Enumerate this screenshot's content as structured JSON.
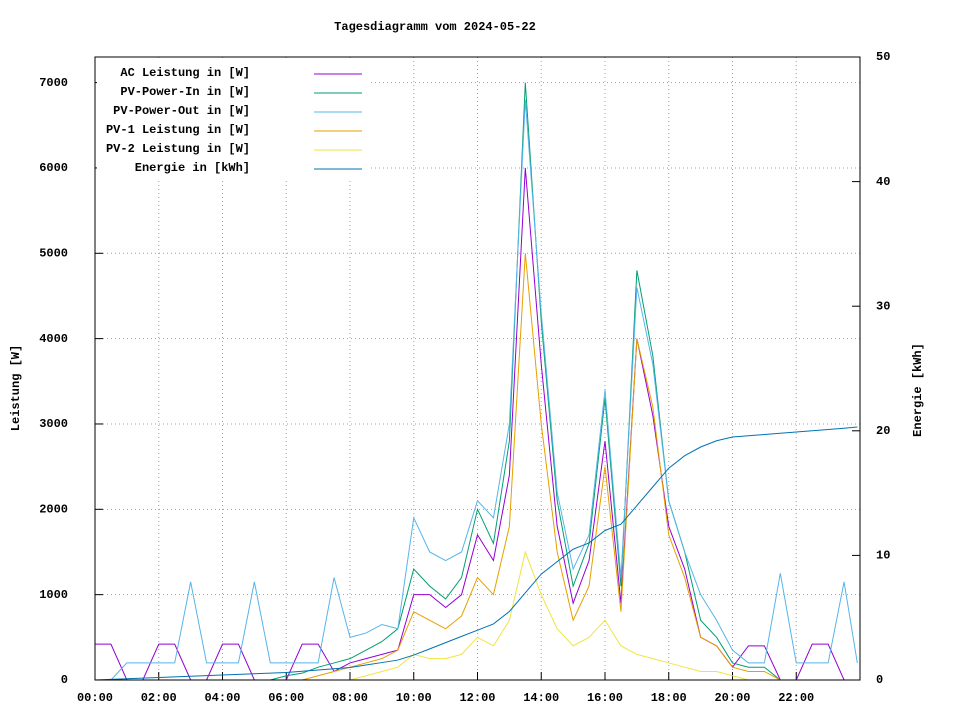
{
  "chart_data": {
    "type": "line",
    "title": "Tagesdiagramm vom 2024-05-22",
    "y_label": "Leistung [W]",
    "y2_label": "Energie [kWh]",
    "x": [
      "00:00",
      "00:30",
      "01:00",
      "01:30",
      "02:00",
      "02:30",
      "03:00",
      "03:30",
      "04:00",
      "04:30",
      "05:00",
      "05:30",
      "06:00",
      "06:30",
      "07:00",
      "07:30",
      "08:00",
      "08:30",
      "09:00",
      "09:30",
      "10:00",
      "10:30",
      "11:00",
      "11:30",
      "12:00",
      "12:30",
      "13:00",
      "13:30",
      "14:00",
      "14:30",
      "15:00",
      "15:30",
      "16:00",
      "16:30",
      "17:00",
      "17:30",
      "18:00",
      "18:30",
      "19:00",
      "19:30",
      "20:00",
      "20:30",
      "21:00",
      "21:30",
      "22:00",
      "22:30",
      "23:00",
      "23:30",
      "23:55"
    ],
    "xlim": [
      "00:00",
      "24:00"
    ],
    "xticks": [
      "00:00",
      "02:00",
      "04:00",
      "06:00",
      "08:00",
      "10:00",
      "12:00",
      "14:00",
      "16:00",
      "18:00",
      "20:00",
      "22:00"
    ],
    "ylim": [
      0,
      7300
    ],
    "yticks": [
      0,
      1000,
      2000,
      3000,
      4000,
      5000,
      6000,
      7000
    ],
    "y2lim": [
      0,
      50
    ],
    "y2ticks": [
      0,
      10,
      20,
      30,
      40,
      50
    ],
    "grid": true,
    "legend": "top-left",
    "series": [
      {
        "name": "AC Leistung in [W]",
        "color": "#9400d3",
        "values": [
          420,
          420,
          0,
          0,
          420,
          420,
          0,
          0,
          420,
          420,
          0,
          0,
          0,
          420,
          420,
          100,
          200,
          250,
          300,
          350,
          1000,
          1000,
          850,
          1000,
          1700,
          1400,
          2400,
          6000,
          3700,
          1800,
          900,
          1400,
          2800,
          900,
          4000,
          3100,
          1800,
          1300,
          500,
          400,
          150,
          400,
          400,
          0,
          0,
          420,
          420,
          0,
          0
        ]
      },
      {
        "name": "PV-Power-In in [W]",
        "color": "#009e73",
        "values": [
          0,
          0,
          0,
          0,
          0,
          0,
          0,
          0,
          0,
          0,
          0,
          0,
          50,
          80,
          150,
          200,
          250,
          350,
          450,
          600,
          1300,
          1100,
          950,
          1200,
          2000,
          1600,
          2800,
          7000,
          4200,
          2100,
          1100,
          1600,
          3300,
          1100,
          4800,
          3800,
          2100,
          1500,
          700,
          500,
          200,
          150,
          150,
          0,
          0,
          0,
          0,
          0,
          0
        ]
      },
      {
        "name": "PV-Power-Out in [W]",
        "color": "#56b4e9",
        "values": [
          0,
          0,
          200,
          200,
          200,
          200,
          1150,
          200,
          200,
          200,
          1150,
          200,
          200,
          200,
          200,
          1200,
          500,
          550,
          650,
          600,
          1900,
          1500,
          1400,
          1500,
          2100,
          1900,
          3000,
          6800,
          4300,
          2200,
          1300,
          1700,
          3400,
          1200,
          4600,
          3700,
          2100,
          1500,
          1000,
          700,
          350,
          200,
          200,
          1250,
          200,
          200,
          200,
          1150,
          200
        ]
      },
      {
        "name": "PV-1 Leistung in [W]",
        "color": "#e69f00",
        "values": [
          0,
          0,
          0,
          0,
          0,
          0,
          0,
          0,
          0,
          0,
          0,
          0,
          0,
          0,
          50,
          100,
          150,
          200,
          250,
          350,
          800,
          700,
          600,
          750,
          1200,
          1000,
          1800,
          5000,
          3000,
          1500,
          700,
          1100,
          2500,
          800,
          4000,
          3200,
          1700,
          1200,
          500,
          400,
          150,
          100,
          100,
          0,
          0,
          0,
          0,
          0,
          0
        ]
      },
      {
        "name": "PV-2 Leistung in [W]",
        "color": "#f0e442",
        "values": [
          0,
          0,
          0,
          0,
          0,
          0,
          0,
          0,
          0,
          0,
          0,
          0,
          0,
          0,
          0,
          0,
          0,
          50,
          100,
          150,
          300,
          250,
          250,
          300,
          500,
          400,
          700,
          1500,
          1000,
          600,
          400,
          500,
          700,
          400,
          300,
          250,
          200,
          150,
          100,
          100,
          50,
          0,
          0,
          0,
          0,
          0,
          0,
          0,
          0
        ]
      },
      {
        "name": "Energie in [kWh]",
        "color": "#0072b2",
        "axis": "y2",
        "values": [
          0,
          0.05,
          0.1,
          0.15,
          0.2,
          0.25,
          0.3,
          0.35,
          0.4,
          0.45,
          0.5,
          0.55,
          0.6,
          0.7,
          0.8,
          0.9,
          1.0,
          1.2,
          1.4,
          1.6,
          2.0,
          2.5,
          3.0,
          3.5,
          4.0,
          4.5,
          5.5,
          7.0,
          8.5,
          9.5,
          10.5,
          11.0,
          12.0,
          12.5,
          14.0,
          15.5,
          17.0,
          18.0,
          18.7,
          19.2,
          19.5,
          19.6,
          19.7,
          19.8,
          19.9,
          20.0,
          20.1,
          20.2,
          20.3
        ]
      }
    ]
  }
}
